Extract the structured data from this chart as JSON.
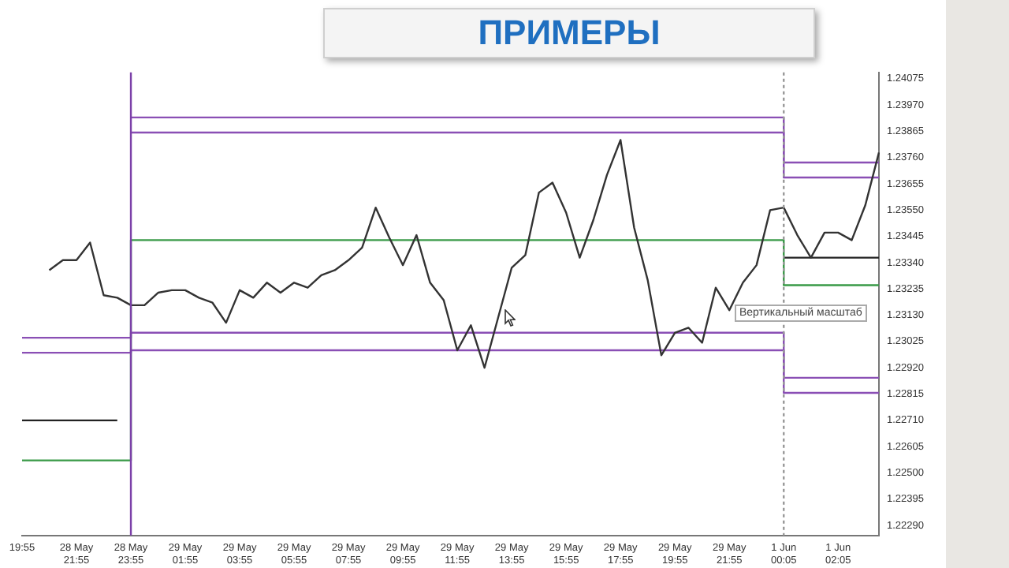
{
  "chart_data": {
    "type": "line",
    "title": "ПРИМЕРЫ",
    "annotations": [
      "Вертикальный масштаб"
    ],
    "categories": [
      "19:55",
      null,
      null,
      null,
      "28 May 21:55",
      null,
      null,
      null,
      "28 May 23:55",
      null,
      null,
      null,
      "29 May 01:55",
      null,
      null,
      null,
      "29 May 03:55",
      null,
      null,
      null,
      "29 May 05:55",
      null,
      null,
      null,
      "29 May 07:55",
      null,
      null,
      null,
      "29 May 09:55",
      null,
      null,
      null,
      "29 May 11:55",
      null,
      null,
      null,
      "29 May 13:55",
      null,
      null,
      null,
      "29 May 15:55",
      null,
      null,
      null,
      "29 May 17:55",
      null,
      null,
      null,
      "29 May 19:55",
      null,
      null,
      null,
      "29 May 21:55",
      null,
      null,
      null,
      "1 Jun 00:05",
      null,
      null,
      null,
      "1 Jun 02:05",
      null,
      null,
      null
    ],
    "ylim": [
      1.2225,
      1.241
    ],
    "yticks": [
      {
        "value": 1.2229,
        "label": "1.22290"
      },
      {
        "value": 1.22395,
        "label": "1.22395"
      },
      {
        "value": 1.225,
        "label": "1.22500"
      },
      {
        "value": 1.22605,
        "label": "1.22605"
      },
      {
        "value": 1.2271,
        "label": "1.22710"
      },
      {
        "value": 1.22815,
        "label": "1.22815"
      },
      {
        "value": 1.2292,
        "label": "1.22920"
      },
      {
        "value": 1.23025,
        "label": "1.23025"
      },
      {
        "value": 1.2313,
        "label": "1.23130"
      },
      {
        "value": 1.23235,
        "label": "1.23235"
      },
      {
        "value": 1.2334,
        "label": "1.23340"
      },
      {
        "value": 1.23445,
        "label": "1.23445"
      },
      {
        "value": 1.2355,
        "label": "1.23550"
      },
      {
        "value": 1.23655,
        "label": "1.23655"
      },
      {
        "value": 1.2376,
        "label": "1.23760"
      },
      {
        "value": 1.23865,
        "label": "1.23865"
      },
      {
        "value": 1.2397,
        "label": "1.23970"
      },
      {
        "value": 1.24075,
        "label": "1.24075"
      }
    ],
    "ref_lines": [
      {
        "axis": "x",
        "value": "28 May 23:55",
        "color": "#7b3fa8"
      },
      {
        "axis": "x",
        "value": "1 Jun 00:05",
        "color": "#999999",
        "line_style": "dotted"
      }
    ],
    "series": [
      {
        "color": "#333333",
        "values": [
          null,
          null,
          1.2331,
          1.2335,
          1.2335,
          1.2342,
          1.2321,
          1.232,
          1.2317,
          1.2317,
          1.2322,
          1.2323,
          1.2323,
          1.232,
          1.2318,
          1.231,
          1.2323,
          1.232,
          1.2326,
          1.2322,
          1.2326,
          1.2324,
          1.2329,
          1.2331,
          1.2335,
          1.234,
          1.2356,
          1.2344,
          1.2333,
          1.2345,
          1.2326,
          1.2319,
          1.2299,
          1.2309,
          1.2292,
          1.2312,
          1.2332,
          1.2337,
          1.2362,
          1.2366,
          1.2354,
          1.2336,
          1.2351,
          1.2369,
          1.2383,
          1.2348,
          1.2327,
          1.2297,
          1.2306,
          1.2308,
          1.2302,
          1.2324,
          1.2315,
          1.2326,
          1.2333,
          1.2355,
          1.2356,
          1.2345,
          1.2336,
          1.2346,
          1.2346,
          1.2343,
          1.2357,
          1.2378
        ]
      },
      {
        "type": "step",
        "color": "#8a4fb5",
        "values": [
          1.2304,
          1.2304,
          1.2304,
          1.2304,
          1.2304,
          1.2304,
          1.2304,
          1.2304,
          1.2306,
          1.2306,
          1.2306,
          1.2306,
          1.2306,
          1.2306,
          1.2306,
          1.2306,
          1.2306,
          1.2306,
          1.2306,
          1.2306,
          1.2306,
          1.2306,
          1.2306,
          1.2306,
          1.2306,
          1.2306,
          1.2306,
          1.2306,
          1.2306,
          1.2306,
          1.2306,
          1.2306,
          1.2306,
          1.2306,
          1.2306,
          1.2306,
          1.2306,
          1.2306,
          1.2306,
          1.2306,
          1.2306,
          1.2306,
          1.2306,
          1.2306,
          1.2306,
          1.2306,
          1.2306,
          1.2306,
          1.2306,
          1.2306,
          1.2306,
          1.2306,
          1.2306,
          1.2306,
          1.2306,
          1.2306,
          1.2288,
          1.2288,
          1.2288,
          1.2288,
          1.2288,
          1.2288,
          1.2288,
          1.2288
        ]
      },
      {
        "type": "step",
        "color": "#8a4fb5",
        "values": [
          1.2298,
          1.2298,
          1.2298,
          1.2298,
          1.2298,
          1.2298,
          1.2298,
          1.2298,
          1.2299,
          1.2299,
          1.2299,
          1.2299,
          1.2299,
          1.2299,
          1.2299,
          1.2299,
          1.2299,
          1.2299,
          1.2299,
          1.2299,
          1.2299,
          1.2299,
          1.2299,
          1.2299,
          1.2299,
          1.2299,
          1.2299,
          1.2299,
          1.2299,
          1.2299,
          1.2299,
          1.2299,
          1.2299,
          1.2299,
          1.2299,
          1.2299,
          1.2299,
          1.2299,
          1.2299,
          1.2299,
          1.2299,
          1.2299,
          1.2299,
          1.2299,
          1.2299,
          1.2299,
          1.2299,
          1.2299,
          1.2299,
          1.2299,
          1.2299,
          1.2299,
          1.2299,
          1.2299,
          1.2299,
          1.2299,
          1.2282,
          1.2282,
          1.2282,
          1.2282,
          1.2282,
          1.2282,
          1.2282,
          1.2282
        ]
      },
      {
        "type": "step",
        "color": "#8a4fb5",
        "values": [
          null,
          null,
          null,
          null,
          null,
          null,
          null,
          null,
          1.2392,
          1.2392,
          1.2392,
          1.2392,
          1.2392,
          1.2392,
          1.2392,
          1.2392,
          1.2392,
          1.2392,
          1.2392,
          1.2392,
          1.2392,
          1.2392,
          1.2392,
          1.2392,
          1.2392,
          1.2392,
          1.2392,
          1.2392,
          1.2392,
          1.2392,
          1.2392,
          1.2392,
          1.2392,
          1.2392,
          1.2392,
          1.2392,
          1.2392,
          1.2392,
          1.2392,
          1.2392,
          1.2392,
          1.2392,
          1.2392,
          1.2392,
          1.2392,
          1.2392,
          1.2392,
          1.2392,
          1.2392,
          1.2392,
          1.2392,
          1.2392,
          1.2392,
          1.2392,
          1.2392,
          1.2392,
          1.2374,
          1.2374,
          1.2374,
          1.2374,
          1.2374,
          1.2374,
          1.2374,
          1.2374
        ]
      },
      {
        "type": "step",
        "color": "#8a4fb5",
        "values": [
          null,
          null,
          null,
          null,
          null,
          null,
          null,
          null,
          1.2386,
          1.2386,
          1.2386,
          1.2386,
          1.2386,
          1.2386,
          1.2386,
          1.2386,
          1.2386,
          1.2386,
          1.2386,
          1.2386,
          1.2386,
          1.2386,
          1.2386,
          1.2386,
          1.2386,
          1.2386,
          1.2386,
          1.2386,
          1.2386,
          1.2386,
          1.2386,
          1.2386,
          1.2386,
          1.2386,
          1.2386,
          1.2386,
          1.2386,
          1.2386,
          1.2386,
          1.2386,
          1.2386,
          1.2386,
          1.2386,
          1.2386,
          1.2386,
          1.2386,
          1.2386,
          1.2386,
          1.2386,
          1.2386,
          1.2386,
          1.2386,
          1.2386,
          1.2386,
          1.2386,
          1.2386,
          1.2368,
          1.2368,
          1.2368,
          1.2368,
          1.2368,
          1.2368,
          1.2368,
          1.2368
        ]
      },
      {
        "type": "step",
        "color": "#222222",
        "values": [
          1.2271,
          1.2271,
          1.2271,
          1.2271,
          1.2271,
          1.2271,
          1.2271,
          1.2271,
          null,
          null,
          null,
          null,
          null,
          null,
          null,
          null,
          null,
          null,
          null,
          null,
          null,
          null,
          null,
          null,
          null,
          null,
          null,
          null,
          null,
          null,
          null,
          null,
          null,
          null,
          null,
          null,
          null,
          null,
          null,
          null,
          null,
          null,
          null,
          null,
          null,
          null,
          null,
          null,
          null,
          null,
          null,
          null,
          null,
          null,
          null,
          null,
          1.2336,
          1.2336,
          1.2336,
          1.2336,
          1.2336,
          1.2336,
          1.2336,
          1.2336
        ]
      },
      {
        "type": "step",
        "color": "#3a9a48",
        "values": [
          1.2255,
          1.2255,
          1.2255,
          1.2255,
          1.2255,
          1.2255,
          1.2255,
          1.2255,
          1.2343,
          1.2343,
          1.2343,
          1.2343,
          1.2343,
          1.2343,
          1.2343,
          1.2343,
          1.2343,
          1.2343,
          1.2343,
          1.2343,
          1.2343,
          1.2343,
          1.2343,
          1.2343,
          1.2343,
          1.2343,
          1.2343,
          1.2343,
          1.2343,
          1.2343,
          1.2343,
          1.2343,
          1.2343,
          1.2343,
          1.2343,
          1.2343,
          1.2343,
          1.2343,
          1.2343,
          1.2343,
          1.2343,
          1.2343,
          1.2343,
          1.2343,
          1.2343,
          1.2343,
          1.2343,
          1.2343,
          1.2343,
          1.2343,
          1.2343,
          1.2343,
          1.2343,
          1.2343,
          1.2343,
          1.2343,
          1.2325,
          1.2325,
          1.2325,
          1.2325,
          1.2325,
          1.2325,
          1.2325,
          1.2325
        ]
      }
    ]
  }
}
